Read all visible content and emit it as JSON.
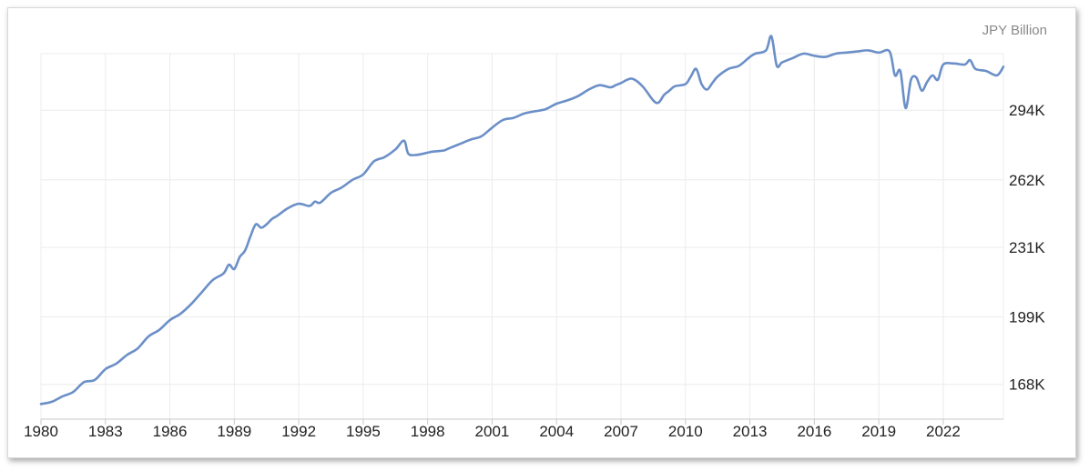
{
  "chart_data": {
    "type": "line",
    "title": "",
    "unit_label": "JPY Billion",
    "xlabel": "",
    "ylabel": "",
    "x_ticks": [
      "1980",
      "1983",
      "1986",
      "1989",
      "1992",
      "1995",
      "1998",
      "2001",
      "2004",
      "2007",
      "2010",
      "2013",
      "2016",
      "2019",
      "2022"
    ],
    "y_ticks": [
      {
        "value": 168000,
        "label": "168K"
      },
      {
        "value": 199000,
        "label": "199K"
      },
      {
        "value": 231000,
        "label": "231K"
      },
      {
        "value": 262000,
        "label": "262K"
      },
      {
        "value": 294000,
        "label": "294K"
      }
    ],
    "xlim": [
      1980.0,
      2024.8
    ],
    "ylim": [
      152000,
      320000
    ],
    "grid": true,
    "legend": "none",
    "colors": {
      "line": "#6b8fc7",
      "grid": "#ececec",
      "axis": "#c8c8c8"
    },
    "series": [
      {
        "x": [
          1980.0,
          1980.5,
          1981.0,
          1981.5,
          1982.0,
          1982.5,
          1983.0,
          1983.5,
          1984.0,
          1984.5,
          1985.0,
          1985.5,
          1986.0,
          1986.5,
          1987.0,
          1987.5,
          1988.0,
          1988.5,
          1988.75,
          1989.0,
          1989.25,
          1989.5,
          1989.75,
          1990.0,
          1990.25,
          1990.5,
          1990.75,
          1991.0,
          1991.5,
          1992.0,
          1992.5,
          1992.75,
          1993.0,
          1993.5,
          1994.0,
          1994.5,
          1995.0,
          1995.5,
          1996.0,
          1996.5,
          1996.9,
          1997.1,
          1997.5,
          1998.0,
          1998.25,
          1998.75,
          1999.0,
          1999.5,
          2000.0,
          2000.5,
          2001.0,
          2001.5,
          2002.0,
          2002.5,
          2003.0,
          2003.5,
          2004.0,
          2004.5,
          2005.0,
          2005.5,
          2006.0,
          2006.5,
          2006.75,
          2007.0,
          2007.5,
          2008.0,
          2008.5,
          2008.75,
          2009.0,
          2009.25,
          2009.5,
          2010.0,
          2010.25,
          2010.5,
          2010.75,
          2011.0,
          2011.25,
          2011.5,
          2012.0,
          2012.5,
          2013.0,
          2013.25,
          2013.75,
          2014.0,
          2014.25,
          2014.5,
          2015.0,
          2015.5,
          2016.0,
          2016.5,
          2017.0,
          2017.5,
          2018.0,
          2018.5,
          2019.0,
          2019.5,
          2019.75,
          2020.0,
          2020.25,
          2020.5,
          2020.75,
          2021.0,
          2021.25,
          2021.5,
          2021.75,
          2022.0,
          2022.5,
          2023.0,
          2023.25,
          2023.5,
          2024.0,
          2024.5,
          2024.8
        ],
        "y": [
          159000,
          160000,
          162500,
          164500,
          169000,
          170000,
          175000,
          177500,
          181500,
          184500,
          190000,
          193000,
          197500,
          200500,
          205000,
          210500,
          216000,
          219000,
          223000,
          221000,
          226500,
          229500,
          236000,
          241500,
          240000,
          241500,
          244000,
          245500,
          249000,
          251000,
          250000,
          252000,
          251500,
          256000,
          258500,
          262000,
          264500,
          270500,
          272500,
          276000,
          280000,
          274000,
          273500,
          274500,
          275000,
          275500,
          276500,
          278500,
          280500,
          282000,
          286000,
          289500,
          290500,
          292500,
          293500,
          294500,
          297000,
          298500,
          300500,
          303500,
          305500,
          304500,
          305500,
          306500,
          308500,
          305000,
          298500,
          297500,
          301000,
          303000,
          305000,
          306000,
          309500,
          313000,
          306000,
          303500,
          306500,
          309500,
          313000,
          314500,
          318500,
          320000,
          321500,
          328000,
          314500,
          316000,
          318000,
          320000,
          319000,
          318500,
          320000,
          320500,
          321000,
          321500,
          320500,
          321000,
          310000,
          312000,
          295000,
          308000,
          309000,
          303000,
          307000,
          310000,
          308000,
          315000,
          315500,
          315000,
          317000,
          313000,
          312000,
          310000,
          314000
        ]
      }
    ]
  }
}
